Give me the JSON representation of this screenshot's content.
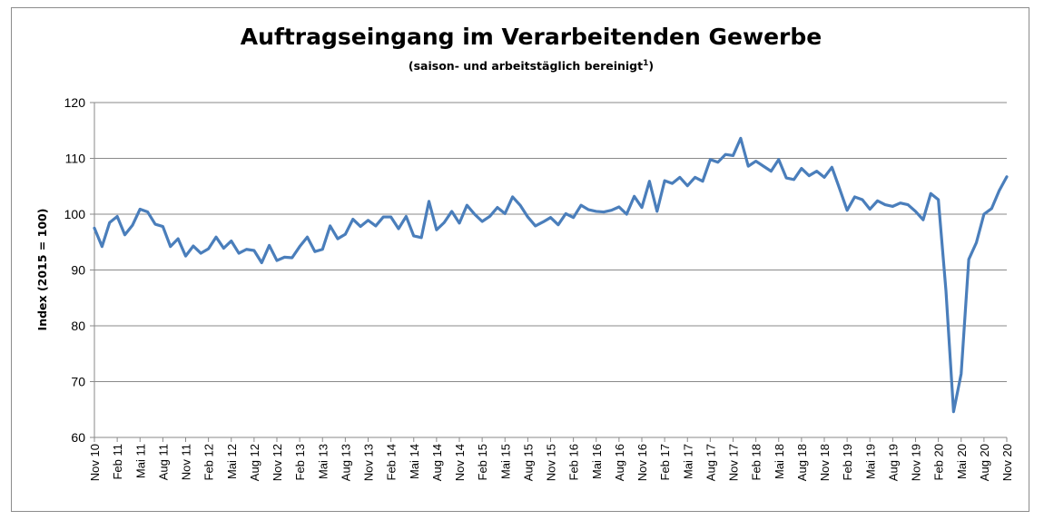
{
  "chart_data": {
    "type": "line",
    "title": "Auftragseingang im Verarbeitenden Gewerbe",
    "subtitle": "(saison- und arbeitstäglich bereinigt",
    "subtitle_superscript": "1",
    "subtitle_close": ")",
    "xlabel": "",
    "ylabel": "Index (2015 = 100)",
    "ylim": [
      60,
      120
    ],
    "yticks": [
      60,
      70,
      80,
      90,
      100,
      110,
      120
    ],
    "grid": "horizontal",
    "legend": "none",
    "line_color": "#4a7ebb",
    "x_tick_labels": [
      "Nov 10",
      "Feb 11",
      "Mai 11",
      "Aug 11",
      "Nov 11",
      "Feb 12",
      "Mai 12",
      "Aug 12",
      "Nov 12",
      "Feb 13",
      "Mai 13",
      "Aug 13",
      "Nov 13",
      "Feb 14",
      "Mai 14",
      "Aug 14",
      "Nov 14",
      "Feb 15",
      "Mai 15",
      "Aug 15",
      "Nov 15",
      "Feb 16",
      "Mai 16",
      "Aug 16",
      "Nov 16",
      "Feb 17",
      "Mai 17",
      "Aug 17",
      "Nov 17",
      "Feb 18",
      "Mai 18",
      "Aug 18",
      "Nov 18",
      "Feb 19",
      "Mai 19",
      "Aug 19",
      "Nov 19",
      "Feb 20",
      "Mai 20",
      "Aug 20",
      "Nov 20"
    ],
    "x_start": "Nov 10",
    "x_end": "Nov 20",
    "series": [
      {
        "values": [
          97.5,
          94.2,
          98.5,
          99.6,
          96.3,
          98.0,
          100.9,
          100.4,
          98.2,
          97.8,
          94.2,
          95.6,
          92.5,
          94.3,
          93.0,
          93.8,
          95.9,
          93.9,
          95.2,
          93.0,
          93.7,
          93.5,
          91.3,
          94.4,
          91.7,
          92.3,
          92.2,
          94.2,
          95.9,
          93.3,
          93.7,
          97.9,
          95.6,
          96.4,
          99.1,
          97.8,
          98.9,
          97.9,
          99.5,
          99.5,
          97.4,
          99.6,
          96.1,
          95.8,
          102.3,
          97.2,
          98.5,
          100.5,
          98.4,
          101.6,
          100.0,
          98.7,
          99.6,
          101.2,
          100.1,
          103.1,
          101.6,
          99.5,
          97.9,
          98.6,
          99.4,
          98.1,
          100.1,
          99.4,
          101.6,
          100.8,
          100.5,
          100.4,
          100.7,
          101.3,
          100.0,
          103.2,
          101.2,
          105.9,
          100.5,
          106.0,
          105.5,
          106.6,
          105.1,
          106.6,
          105.9,
          109.8,
          109.3,
          110.7,
          110.5,
          113.6,
          108.6,
          109.5,
          108.6,
          107.7,
          109.8,
          106.5,
          106.2,
          108.2,
          106.9,
          107.7,
          106.6,
          108.4,
          104.6,
          100.7,
          103.1,
          102.6,
          100.9,
          102.4,
          101.7,
          101.4,
          102.0,
          101.7,
          100.5,
          99.0,
          103.7,
          102.6,
          86.3,
          64.6,
          71.4,
          91.9,
          94.9,
          100.0,
          101.0,
          104.2,
          106.7
        ]
      }
    ]
  }
}
